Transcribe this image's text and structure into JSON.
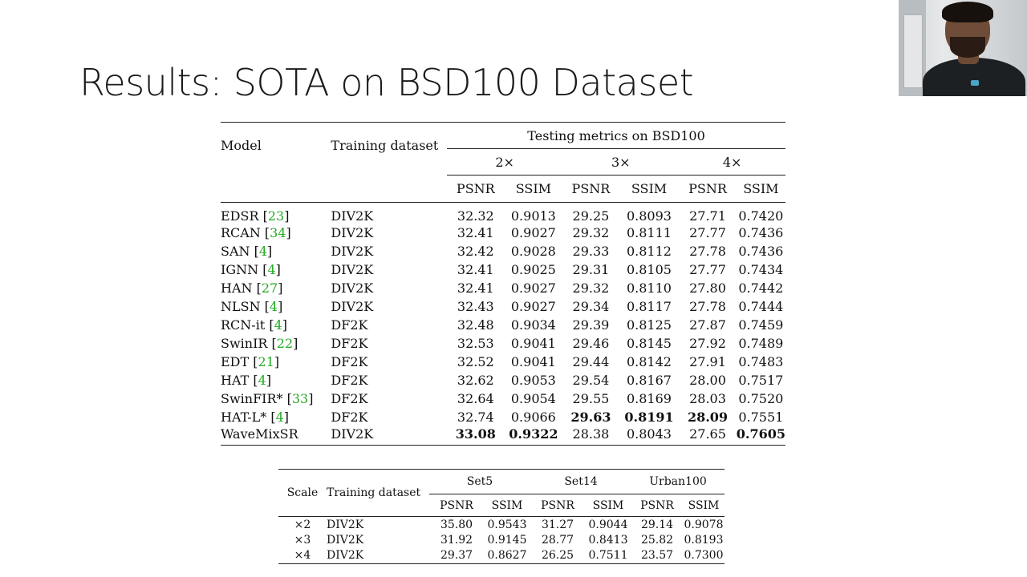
{
  "slide": {
    "title": "Results: SOTA on BSD100 Dataset"
  },
  "main_table": {
    "header": {
      "model": "Model",
      "training_dataset": "Training dataset",
      "testing_metrics": "Testing metrics on BSD100",
      "scales": [
        "2×",
        "3×",
        "4×"
      ],
      "metrics": [
        "PSNR",
        "SSIM",
        "PSNR",
        "SSIM",
        "PSNR",
        "SSIM"
      ]
    },
    "rows": [
      {
        "model": "EDSR",
        "ref": "23",
        "suffix": "",
        "train": "DIV2K",
        "values": [
          "32.32",
          "0.9013",
          "29.25",
          "0.8093",
          "27.71",
          "0.7420"
        ]
      },
      {
        "model": "RCAN",
        "ref": "34",
        "suffix": "",
        "train": "DIV2K",
        "values": [
          "32.41",
          "0.9027",
          "29.32",
          "0.8111",
          "27.77",
          "0.7436"
        ]
      },
      {
        "model": "SAN",
        "ref": "4",
        "suffix": "",
        "train": "DIV2K",
        "values": [
          "32.42",
          "0.9028",
          "29.33",
          "0.8112",
          "27.78",
          "0.7436"
        ]
      },
      {
        "model": "IGNN",
        "ref": "4",
        "suffix": "",
        "train": "DIV2K",
        "values": [
          "32.41",
          "0.9025",
          "29.31",
          "0.8105",
          "27.77",
          "0.7434"
        ]
      },
      {
        "model": "HAN",
        "ref": "27",
        "suffix": "",
        "train": "DIV2K",
        "values": [
          "32.41",
          "0.9027",
          "29.32",
          "0.8110",
          "27.80",
          "0.7442"
        ]
      },
      {
        "model": "NLSN",
        "ref": "4",
        "suffix": "",
        "train": "DIV2K",
        "values": [
          "32.43",
          "0.9027",
          "29.34",
          "0.8117",
          "27.78",
          "0.7444"
        ]
      },
      {
        "model": "RCN-it",
        "ref": "4",
        "suffix": "",
        "train": "DF2K",
        "values": [
          "32.48",
          "0.9034",
          "29.39",
          "0.8125",
          "27.87",
          "0.7459"
        ]
      },
      {
        "model": "SwinIR",
        "ref": "22",
        "suffix": "",
        "train": "DF2K",
        "values": [
          "32.53",
          "0.9041",
          "29.46",
          "0.8145",
          "27.92",
          "0.7489"
        ]
      },
      {
        "model": "EDT",
        "ref": "21",
        "suffix": "",
        "train": "DF2K",
        "values": [
          "32.52",
          "0.9041",
          "29.44",
          "0.8142",
          "27.91",
          "0.7483"
        ]
      },
      {
        "model": "HAT",
        "ref": "4",
        "suffix": "",
        "train": "DF2K",
        "values": [
          "32.62",
          "0.9053",
          "29.54",
          "0.8167",
          "28.00",
          "0.7517"
        ]
      },
      {
        "model": "SwinFIR*",
        "ref": "33",
        "suffix": "",
        "train": "DF2K",
        "values": [
          "32.64",
          "0.9054",
          "29.55",
          "0.8169",
          "28.03",
          "0.7520"
        ]
      },
      {
        "model": "HAT-L*",
        "ref": "4",
        "suffix": "",
        "train": "DF2K",
        "values": [
          "32.74",
          "0.9066",
          "29.63",
          "0.8191",
          "28.09",
          "0.7551"
        ],
        "bold": [
          2,
          3,
          4
        ]
      },
      {
        "model": "WaveMixSR",
        "ref": "",
        "suffix": "",
        "train": "DIV2K",
        "values": [
          "33.08",
          "0.9322",
          "28.38",
          "0.8043",
          "27.65",
          "0.7605"
        ],
        "bold": [
          0,
          1,
          5
        ]
      }
    ]
  },
  "small_table": {
    "header": {
      "scale": "Scale",
      "training_dataset": "Training dataset",
      "datasets": [
        "Set5",
        "Set14",
        "Urban100"
      ],
      "metrics": [
        "PSNR",
        "SSIM",
        "PSNR",
        "SSIM",
        "PSNR",
        "SSIM"
      ]
    },
    "rows": [
      {
        "scale": "×2",
        "train": "DIV2K",
        "values": [
          "35.80",
          "0.9543",
          "31.27",
          "0.9044",
          "29.14",
          "0.9078"
        ]
      },
      {
        "scale": "×3",
        "train": "DIV2K",
        "values": [
          "31.92",
          "0.9145",
          "28.77",
          "0.8413",
          "25.82",
          "0.8193"
        ]
      },
      {
        "scale": "×4",
        "train": "DIV2K",
        "values": [
          "29.37",
          "0.8627",
          "26.25",
          "0.7511",
          "23.57",
          "0.7300"
        ]
      }
    ]
  }
}
